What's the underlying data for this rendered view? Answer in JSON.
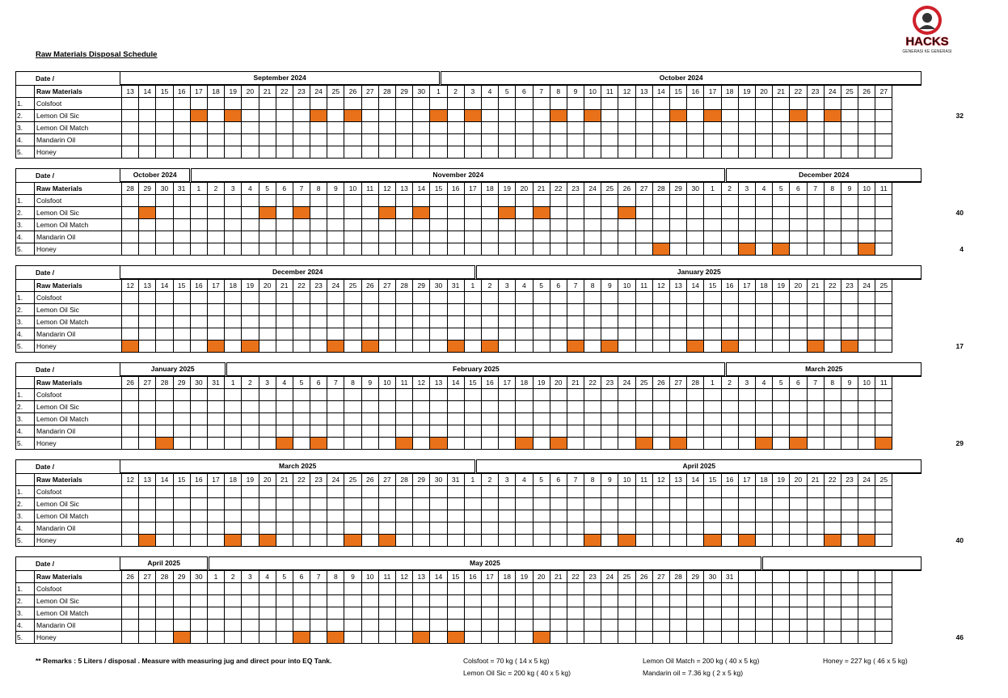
{
  "title": "Raw Materials Disposal Schedule",
  "logo": {
    "text": "HACKS",
    "tagline": "GENERASI KE GENERASI",
    "accent": "#d0202a"
  },
  "mark_color": "#e8711a",
  "labels": {
    "date": "Date  /",
    "raw_materials": "Raw Materials"
  },
  "materials": [
    {
      "idx": "1.",
      "name": "Colsfoot"
    },
    {
      "idx": "2.",
      "name": "Lemon Oil Sic"
    },
    {
      "idx": "3.",
      "name": "Lemon Oil Match"
    },
    {
      "idx": "4.",
      "name": "Mandarin Oil"
    },
    {
      "idx": "5.",
      "name": "Honey"
    }
  ],
  "blocks": [
    {
      "months": [
        {
          "name": "September 2024",
          "span": 18
        },
        {
          "name": "October 2024",
          "span": 27
        }
      ],
      "days": [
        13,
        14,
        15,
        16,
        17,
        18,
        19,
        20,
        21,
        22,
        23,
        24,
        25,
        26,
        27,
        28,
        29,
        30,
        1,
        2,
        3,
        4,
        5,
        6,
        7,
        8,
        9,
        10,
        11,
        12,
        13,
        14,
        15,
        16,
        17,
        18,
        19,
        20,
        21,
        22,
        23,
        24,
        25,
        26,
        27
      ],
      "marks": {
        "1": [
          4,
          6,
          11,
          13,
          18,
          20,
          25,
          27,
          32,
          34,
          39,
          41
        ]
      },
      "totals": {
        "1": "32"
      }
    },
    {
      "months": [
        {
          "name": "October 2024",
          "span": 4
        },
        {
          "name": "November 2024",
          "span": 30
        },
        {
          "name": "December 2024",
          "span": 11
        }
      ],
      "days": [
        28,
        29,
        30,
        31,
        1,
        2,
        3,
        4,
        5,
        6,
        7,
        8,
        9,
        10,
        11,
        12,
        13,
        14,
        15,
        16,
        17,
        18,
        19,
        20,
        21,
        22,
        23,
        24,
        25,
        26,
        27,
        28,
        29,
        30,
        1,
        2,
        3,
        4,
        5,
        6,
        7,
        8,
        9,
        10,
        11
      ],
      "marks": {
        "1": [
          1,
          8,
          10,
          15,
          17,
          22,
          24,
          29
        ],
        "4": [
          31,
          36,
          38,
          43
        ]
      },
      "totals": {
        "1": "40",
        "4": "4"
      }
    },
    {
      "months": [
        {
          "name": "December 2024",
          "span": 20
        },
        {
          "name": "January 2025",
          "span": 25
        }
      ],
      "days": [
        12,
        13,
        14,
        15,
        16,
        17,
        18,
        19,
        20,
        21,
        22,
        23,
        24,
        25,
        26,
        27,
        28,
        29,
        30,
        31,
        1,
        2,
        3,
        4,
        5,
        6,
        7,
        8,
        9,
        10,
        11,
        12,
        13,
        14,
        15,
        16,
        17,
        18,
        19,
        20,
        21,
        22,
        23,
        24,
        25
      ],
      "marks": {
        "4": [
          0,
          5,
          7,
          12,
          14,
          19,
          21,
          26,
          28,
          33,
          35,
          40,
          42
        ]
      },
      "totals": {
        "4": "17"
      }
    },
    {
      "months": [
        {
          "name": "January 2025",
          "span": 6
        },
        {
          "name": "February 2025",
          "span": 28
        },
        {
          "name": "March 2025",
          "span": 11
        }
      ],
      "days": [
        26,
        27,
        28,
        29,
        30,
        31,
        1,
        2,
        3,
        4,
        5,
        6,
        7,
        8,
        9,
        10,
        11,
        12,
        13,
        14,
        15,
        16,
        17,
        18,
        19,
        20,
        21,
        22,
        23,
        24,
        25,
        26,
        27,
        28,
        1,
        2,
        3,
        4,
        5,
        6,
        7,
        8,
        9,
        10,
        11
      ],
      "marks": {
        "4": [
          2,
          9,
          11,
          16,
          18,
          23,
          25,
          30,
          32,
          37,
          39,
          44
        ]
      },
      "totals": {
        "4": "29"
      }
    },
    {
      "months": [
        {
          "name": "March 2025",
          "span": 20
        },
        {
          "name": "April 2025",
          "span": 25
        }
      ],
      "days": [
        12,
        13,
        14,
        15,
        16,
        17,
        18,
        19,
        20,
        21,
        22,
        23,
        24,
        25,
        26,
        27,
        28,
        29,
        30,
        31,
        1,
        2,
        3,
        4,
        5,
        6,
        7,
        8,
        9,
        10,
        11,
        12,
        13,
        14,
        15,
        16,
        17,
        18,
        19,
        20,
        21,
        22,
        23,
        24,
        25
      ],
      "marks": {
        "4": [
          1,
          6,
          8,
          13,
          15,
          27,
          29,
          34,
          36,
          41,
          43
        ]
      },
      "totals": {
        "4": "40"
      }
    },
    {
      "months": [
        {
          "name": "April 2025",
          "span": 5
        },
        {
          "name": "May 2025",
          "span": 31
        },
        {
          "name": "",
          "span": 9
        }
      ],
      "days": [
        26,
        27,
        28,
        29,
        30,
        1,
        2,
        3,
        4,
        5,
        6,
        7,
        8,
        9,
        10,
        11,
        12,
        13,
        14,
        15,
        16,
        17,
        18,
        19,
        20,
        21,
        22,
        23,
        24,
        25,
        26,
        27,
        28,
        29,
        30,
        31,
        "",
        "",
        "",
        "",
        "",
        "",
        "",
        "",
        ""
      ],
      "marks": {
        "4": [
          3,
          10,
          12,
          17,
          19,
          24
        ]
      },
      "totals": {
        "4": "46"
      }
    }
  ],
  "remarks": "** Remarks : 5 Liters / disposal . Measure with measuring jug and direct pour into EQ Tank.",
  "notes": {
    "colsfoot": "Colsfoot = 70 kg  ( 14 x 5 kg)",
    "lemon_sic": "Lemon Oil Sic = 200 kg ( 40 x 5 kg)",
    "lemon_match": "Lemon Oil Match = 200 kg ( 40 x 5 kg)",
    "mandarin": "Mandarin oil = 7.36 kg ( 2 x 5 kg)",
    "honey": "Honey = 227 kg ( 46 x 5 kg)"
  }
}
